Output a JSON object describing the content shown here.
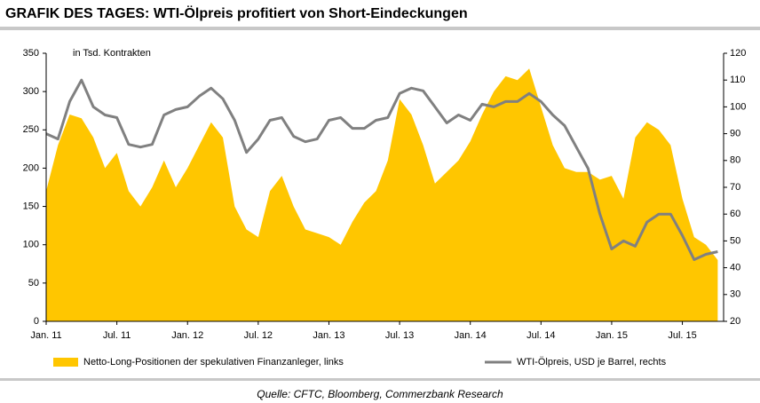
{
  "chart_data": {
    "type": "area_line",
    "title": "GRAFIK DES TAGES: WTI-Ölpreis profitiert von Short-Eindeckungen",
    "annotation": "in Tsd. Kontrakten",
    "source": "Quelle: CFTC, Bloomberg, Commerzbank Research",
    "categories": [
      "Jan. 11",
      null,
      null,
      null,
      null,
      null,
      "Jul. 11",
      null,
      null,
      null,
      null,
      null,
      "Jan. 12",
      null,
      null,
      null,
      null,
      null,
      "Jul. 12",
      null,
      null,
      null,
      null,
      null,
      "Jan. 13",
      null,
      null,
      null,
      null,
      null,
      "Jul. 13",
      null,
      null,
      null,
      null,
      null,
      "Jan. 14",
      null,
      null,
      null,
      null,
      null,
      "Jul. 14",
      null,
      null,
      null,
      null,
      null,
      "Jan. 15",
      null,
      null,
      null,
      null,
      null,
      "Jul. 15",
      null,
      null,
      null
    ],
    "series": [
      {
        "name": "Netto-Long-Positionen der spekulativen Finanzanleger, links",
        "color": "#ffc600",
        "axis": "y",
        "values": [
          170,
          230,
          270,
          265,
          240,
          200,
          220,
          170,
          150,
          175,
          210,
          175,
          200,
          230,
          260,
          240,
          150,
          120,
          110,
          170,
          190,
          150,
          120,
          115,
          110,
          100,
          130,
          155,
          170,
          210,
          290,
          270,
          230,
          180,
          195,
          210,
          235,
          270,
          300,
          320,
          315,
          330,
          280,
          230,
          200,
          195,
          195,
          185,
          190,
          160,
          240,
          260,
          250,
          230,
          160,
          110,
          100,
          80
        ]
      },
      {
        "name": "WTI-Ölpreis, USD je Barrel, rechts",
        "color": "#808080",
        "axis": "y2",
        "values": [
          90,
          88,
          102,
          110,
          100,
          97,
          96,
          86,
          85,
          86,
          97,
          99,
          100,
          104,
          107,
          103,
          95,
          83,
          88,
          95,
          96,
          89,
          87,
          88,
          95,
          96,
          92,
          92,
          95,
          96,
          105,
          107,
          106,
          100,
          94,
          97,
          95,
          101,
          100,
          102,
          102,
          105,
          102,
          97,
          93,
          85,
          77,
          60,
          47,
          50,
          48,
          57,
          60,
          60,
          52,
          43,
          45,
          46
        ]
      }
    ],
    "ylim": [
      0,
      350
    ],
    "yticks": [
      0,
      50,
      100,
      150,
      200,
      250,
      300,
      350
    ],
    "y2lim": [
      20,
      120
    ],
    "y2ticks": [
      20,
      30,
      40,
      50,
      60,
      70,
      80,
      90,
      100,
      110,
      120
    ],
    "legend": "bottom"
  }
}
